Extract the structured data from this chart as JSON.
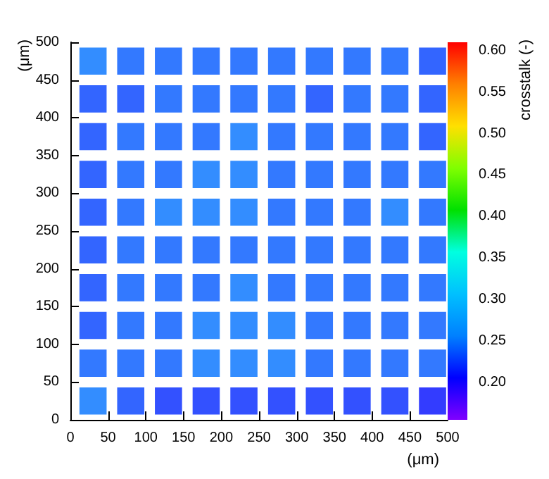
{
  "chart_data": {
    "type": "scatter",
    "marker": "square",
    "xlabel": "(μm)",
    "ylabel": "(μm)",
    "clabel": "crosstalk (-)",
    "xlim": [
      0,
      500
    ],
    "xticks": [
      0,
      50,
      100,
      150,
      200,
      250,
      300,
      350,
      400,
      450,
      500
    ],
    "ylim": [
      0,
      500
    ],
    "yticks": [
      0,
      50,
      100,
      150,
      200,
      250,
      300,
      350,
      400,
      450,
      500
    ],
    "clim": [
      0.155,
      0.61
    ],
    "cticks": [
      {
        "value": 0.2,
        "label": "0.20"
      },
      {
        "value": 0.25,
        "label": "0.25"
      },
      {
        "value": 0.3,
        "label": "0.30"
      },
      {
        "value": 0.35,
        "label": "0.35"
      },
      {
        "value": 0.4,
        "label": "0.40"
      },
      {
        "value": 0.45,
        "label": "0.45"
      },
      {
        "value": 0.5,
        "label": "0.50"
      },
      {
        "value": 0.55,
        "label": "0.55"
      },
      {
        "value": 0.6,
        "label": "0.60"
      }
    ],
    "x": [
      30,
      80,
      130,
      180,
      230,
      280,
      330,
      380,
      430,
      480,
      30,
      80,
      130,
      180,
      230,
      280,
      330,
      380,
      430,
      480,
      30,
      80,
      130,
      180,
      230,
      280,
      330,
      380,
      430,
      480,
      30,
      80,
      130,
      180,
      230,
      280,
      330,
      380,
      430,
      480,
      30,
      80,
      130,
      180,
      230,
      280,
      330,
      380,
      430,
      480,
      30,
      80,
      130,
      180,
      230,
      280,
      330,
      380,
      430,
      480,
      30,
      80,
      130,
      180,
      230,
      280,
      330,
      380,
      430,
      480,
      30,
      80,
      130,
      180,
      230,
      280,
      330,
      380,
      430,
      480,
      30,
      80,
      130,
      180,
      230,
      280,
      330,
      380,
      430,
      480,
      30,
      80,
      130,
      180,
      230,
      280,
      330,
      380,
      430,
      480
    ],
    "values": [
      475,
      475,
      475,
      475,
      475,
      475,
      475,
      475,
      475,
      475,
      425,
      425,
      425,
      425,
      425,
      425,
      425,
      425,
      425,
      425,
      375,
      375,
      375,
      375,
      375,
      375,
      375,
      375,
      375,
      375,
      325,
      325,
      325,
      325,
      325,
      325,
      325,
      325,
      325,
      325,
      275,
      275,
      275,
      275,
      275,
      275,
      275,
      275,
      275,
      275,
      225,
      225,
      225,
      225,
      225,
      225,
      225,
      225,
      225,
      225,
      175,
      175,
      175,
      175,
      175,
      175,
      175,
      175,
      175,
      175,
      125,
      125,
      125,
      125,
      125,
      125,
      125,
      125,
      125,
      125,
      75,
      75,
      75,
      75,
      75,
      75,
      75,
      75,
      75,
      75,
      25,
      25,
      25,
      25,
      25,
      25,
      25,
      25,
      25,
      25
    ],
    "cvalues": [
      0.25,
      0.24,
      0.24,
      0.24,
      0.24,
      0.24,
      0.24,
      0.24,
      0.24,
      0.23,
      0.23,
      0.23,
      0.24,
      0.24,
      0.24,
      0.24,
      0.23,
      0.24,
      0.24,
      0.23,
      0.23,
      0.24,
      0.24,
      0.24,
      0.25,
      0.24,
      0.24,
      0.24,
      0.24,
      0.23,
      0.23,
      0.24,
      0.24,
      0.25,
      0.25,
      0.24,
      0.24,
      0.24,
      0.24,
      0.24,
      0.23,
      0.24,
      0.25,
      0.25,
      0.25,
      0.24,
      0.24,
      0.24,
      0.25,
      0.24,
      0.23,
      0.24,
      0.24,
      0.24,
      0.24,
      0.24,
      0.24,
      0.24,
      0.24,
      0.24,
      0.23,
      0.24,
      0.24,
      0.24,
      0.25,
      0.24,
      0.24,
      0.24,
      0.24,
      0.24,
      0.23,
      0.24,
      0.24,
      0.25,
      0.25,
      0.25,
      0.24,
      0.24,
      0.24,
      0.24,
      0.24,
      0.24,
      0.24,
      0.25,
      0.25,
      0.25,
      0.24,
      0.24,
      0.24,
      0.24,
      0.25,
      0.23,
      0.22,
      0.22,
      0.22,
      0.22,
      0.22,
      0.22,
      0.22,
      0.21
    ]
  }
}
